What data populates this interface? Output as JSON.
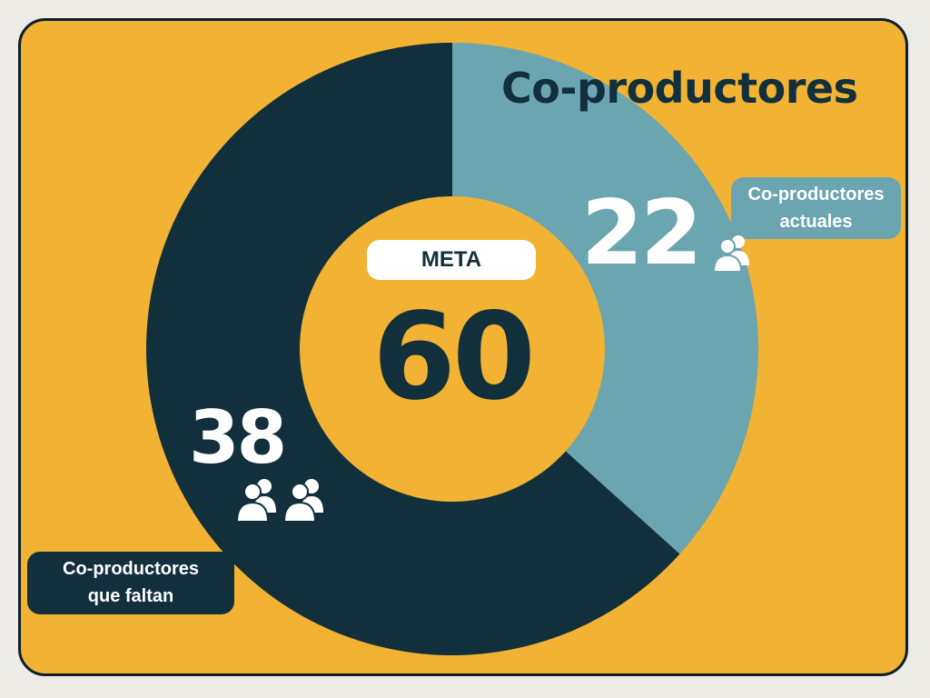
{
  "chart_data": {
    "type": "pie",
    "title": "Co-productores",
    "slices": [
      {
        "label": "Co-productores actuales",
        "value": 22,
        "color": "#6BA5B0"
      },
      {
        "label": "Co-productores que faltan",
        "value": 38,
        "color": "#12303C"
      }
    ],
    "center": {
      "label": "META",
      "value": 60
    }
  },
  "colors": {
    "background": "#F2B233",
    "dark": "#12303C",
    "teal": "#6BA5B0",
    "text_light": "#FFFFFF"
  },
  "labels": {
    "current_line1": "Co-productores",
    "current_line2": "actuales",
    "missing_line1": "Co-productores",
    "missing_line2": "que faltan"
  },
  "icons": [
    "people-icon"
  ]
}
